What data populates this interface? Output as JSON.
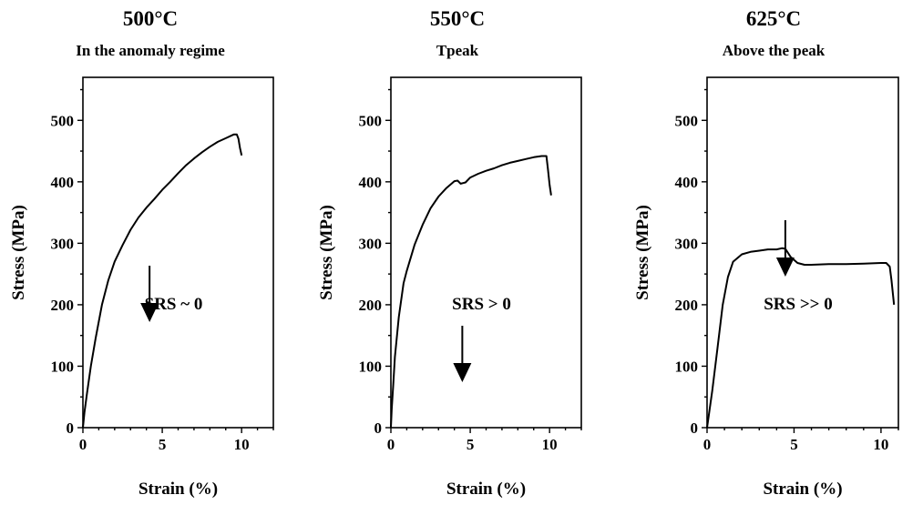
{
  "chart_data": [
    {
      "type": "line",
      "title": "500°C",
      "subtitle": "In the anomaly regime",
      "xlabel": "Strain (%)",
      "ylabel": "Stress (MPa)",
      "xlim": [
        0,
        12
      ],
      "ylim": [
        0,
        570
      ],
      "xticks": [
        0,
        5,
        10
      ],
      "yticks": [
        0,
        100,
        200,
        300,
        400,
        500
      ],
      "annotation": "SRS ~ 0",
      "arrow_at_strain": 4.2,
      "series": [
        {
          "x": [
            0,
            0.1,
            0.25,
            0.5,
            0.8,
            1.2,
            1.6,
            2.0,
            2.5,
            3.0,
            3.5,
            4.0,
            4.5,
            5.0,
            5.5,
            6.0,
            6.5,
            7.0,
            7.5,
            8.0,
            8.5,
            9.0,
            9.5,
            9.7,
            9.8,
            9.9,
            10.0
          ],
          "y": [
            0,
            25,
            55,
            100,
            145,
            200,
            240,
            270,
            297,
            322,
            342,
            358,
            372,
            387,
            400,
            414,
            427,
            438,
            448,
            457,
            465,
            471,
            477,
            477,
            470,
            455,
            443
          ]
        }
      ]
    },
    {
      "type": "line",
      "title": "550°C",
      "subtitle": "Tpeak",
      "xlabel": "Strain (%)",
      "ylabel": "Stress (MPa)",
      "xlim": [
        0,
        12
      ],
      "ylim": [
        0,
        570
      ],
      "xticks": [
        0,
        5,
        10
      ],
      "yticks": [
        0,
        100,
        200,
        300,
        400,
        500
      ],
      "annotation": "SRS > 0",
      "arrow_at_strain": 4.5,
      "series": [
        {
          "x": [
            0,
            0.05,
            0.15,
            0.25,
            0.5,
            0.8,
            1.0,
            1.5,
            2.0,
            2.5,
            3.0,
            3.5,
            4.0,
            4.2,
            4.4,
            4.7,
            5.0,
            5.5,
            6.0,
            6.5,
            7.0,
            7.5,
            8.0,
            8.5,
            9.0,
            9.5,
            9.8,
            9.9,
            10.0,
            10.1
          ],
          "y": [
            0,
            30,
            70,
            115,
            180,
            235,
            255,
            298,
            330,
            357,
            376,
            390,
            401,
            402,
            397,
            399,
            407,
            413,
            418,
            422,
            427,
            431,
            434,
            437,
            440,
            442,
            442,
            420,
            395,
            378
          ]
        }
      ]
    },
    {
      "type": "line",
      "title": "625°C",
      "subtitle": "Above the peak",
      "xlabel": "Strain (%)",
      "ylabel": "Stress (MPa)",
      "xlim": [
        0,
        11
      ],
      "ylim": [
        0,
        570
      ],
      "xticks": [
        0,
        5,
        10
      ],
      "yticks": [
        0,
        100,
        200,
        300,
        400,
        500
      ],
      "annotation": "SRS >> 0",
      "arrow_at_strain": 4.5,
      "series": [
        {
          "x": [
            0,
            0.3,
            0.6,
            0.9,
            1.2,
            1.5,
            2.0,
            2.5,
            3.0,
            3.5,
            4.0,
            4.3,
            4.5,
            4.8,
            5.2,
            5.6,
            6.0,
            7.0,
            8.0,
            9.0,
            10.0,
            10.3,
            10.5,
            10.6,
            10.75
          ],
          "y": [
            0,
            60,
            130,
            200,
            245,
            270,
            282,
            286,
            288,
            290,
            290,
            292,
            291,
            278,
            268,
            265,
            265,
            266,
            266,
            267,
            268,
            268,
            262,
            240,
            200
          ]
        }
      ]
    }
  ]
}
